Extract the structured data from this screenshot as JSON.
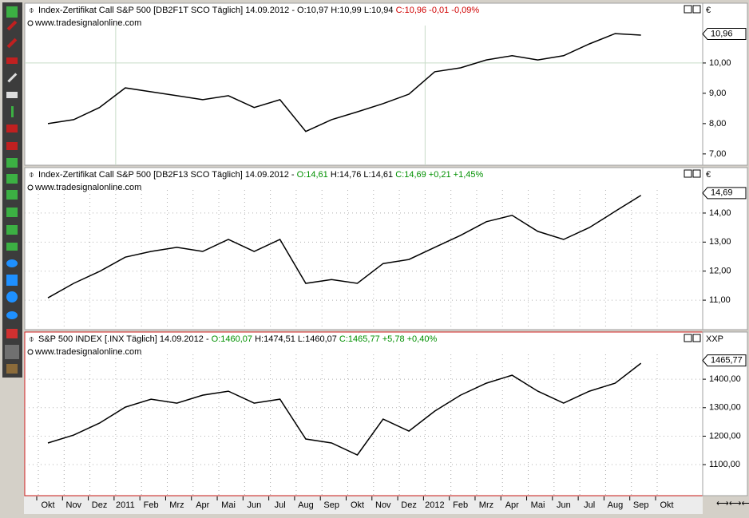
{
  "chart_data": [
    {
      "type": "line",
      "header": [
        {
          "text": "Index-Zertifikat Call S&P 500 [DB2F1T SCO  Täglich] 14.09.2012 - O:10,97 H:10,99 L:10,94 ",
          "color": "#000000"
        },
        {
          "text": "C:10,96 -0,01 -0,09%",
          "color": "#d00000"
        }
      ],
      "website": "www.tradesignalonline.com",
      "currency": "€",
      "last_price": {
        "value": 10.96,
        "label": "10,96"
      },
      "color": "#000000",
      "border": "#a0a0a0",
      "grid": "sparse",
      "values": [
        8.0,
        8.13,
        8.53,
        9.18,
        9.05,
        8.92,
        8.79,
        8.92,
        8.53,
        8.79,
        7.74,
        8.13,
        8.39,
        8.66,
        8.97,
        9.71,
        9.84,
        10.1,
        10.24,
        10.1,
        10.24,
        10.63,
        10.97,
        10.92,
        null
      ],
      "ylim": [
        6.68,
        11.92
      ],
      "yticks": [
        {
          "value": 7,
          "label": "7,00"
        },
        {
          "value": 8,
          "label": "8,00"
        },
        {
          "value": 9,
          "label": "9,00"
        },
        {
          "value": 10,
          "label": "10,00"
        }
      ]
    },
    {
      "type": "line",
      "header": [
        {
          "text": "Index-Zertifikat Call S&P 500 [DB2F13 SCO  Täglich] 14.09.2012 - ",
          "color": "#000000"
        },
        {
          "text": "O:14,61",
          "color": "#009000"
        },
        {
          "text": " H:14,76 L:14,61 ",
          "color": "#000000"
        },
        {
          "text": "C:14,69 +0,21 +1,45%",
          "color": "#009000"
        }
      ],
      "website": "www.tradesignalonline.com",
      "currency": "€",
      "last_price": {
        "value": 14.69,
        "label": "14,69"
      },
      "color": "#000000",
      "border": "#a0a0a0",
      "grid": "dotted",
      "values": [
        11.08,
        11.58,
        11.99,
        12.48,
        12.68,
        12.82,
        12.68,
        13.09,
        12.68,
        13.09,
        11.58,
        11.71,
        11.58,
        12.26,
        12.4,
        12.82,
        13.23,
        13.7,
        13.92,
        13.37,
        13.09,
        13.5,
        14.06,
        14.61,
        null
      ],
      "ylim": [
        10.04,
        15.51
      ],
      "yticks": [
        {
          "value": 11,
          "label": "11,00"
        },
        {
          "value": 12,
          "label": "12,00"
        },
        {
          "value": 13,
          "label": "13,00"
        },
        {
          "value": 14,
          "label": "14,00"
        }
      ]
    },
    {
      "type": "line",
      "header": [
        {
          "text": "S&P 500 INDEX [.INX  Täglich] 14.09.2012 - ",
          "color": "#000000"
        },
        {
          "text": "O:1460,07",
          "color": "#009000"
        },
        {
          "text": " H:1474,51 L:1460,07 ",
          "color": "#000000"
        },
        {
          "text": "C:1465,77 +5,78 +0,40%",
          "color": "#009000"
        }
      ],
      "website": "www.tradesignalonline.com",
      "currency": "XXP",
      "last_price": {
        "value": 1465.77,
        "label": "1465,77"
      },
      "color": "#000000",
      "border": "#d02020",
      "grid": "dotted",
      "categories": [
        "Okt",
        "Nov",
        "Dez",
        "2011",
        "Feb",
        "Mrz",
        "Apr",
        "Mai",
        "Jun",
        "Jul",
        "Aug",
        "Sep",
        "Okt",
        "Nov",
        "Dez",
        "2012",
        "Feb",
        "Mrz",
        "Apr",
        "Mai",
        "Jun",
        "Jul",
        "Aug",
        "Sep",
        "Okt"
      ],
      "values": [
        1176,
        1204,
        1246,
        1302,
        1330,
        1316,
        1344,
        1358,
        1316,
        1330,
        1190,
        1176,
        1134,
        1260,
        1218,
        1288,
        1344,
        1386,
        1414,
        1358,
        1316,
        1358,
        1386,
        1456,
        null
      ],
      "ylim": [
        994,
        1560
      ],
      "yticks": [
        {
          "value": 1100,
          "label": "1100,00"
        },
        {
          "value": 1200,
          "label": "1200,00"
        },
        {
          "value": 1300,
          "label": "1300,00"
        },
        {
          "value": 1400,
          "label": "1400,00"
        }
      ]
    }
  ]
}
